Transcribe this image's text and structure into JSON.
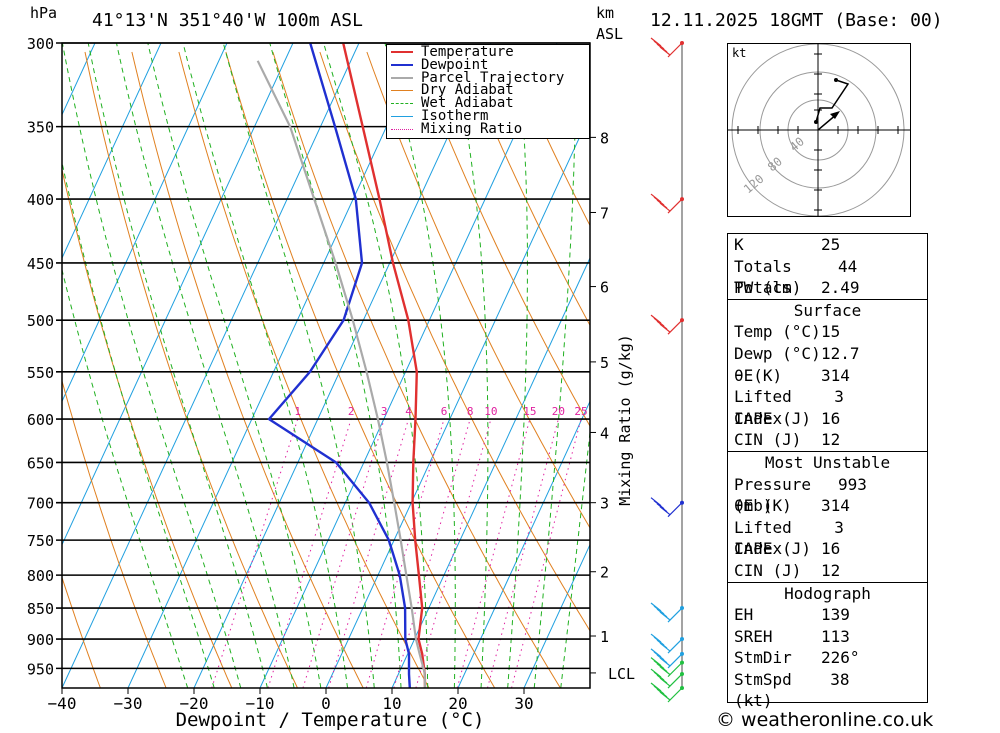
{
  "header": {
    "location": "41°13'N  351°40'W  100m  ASL",
    "datetime": "12.11.2025  18GMT  (Base: 00)",
    "unit_hpa": "hPa",
    "unit_km": "km",
    "unit_asl": "ASL"
  },
  "chart_data": {
    "type": "skew-t",
    "title": "41°13'N 351°40'W 100m ASL",
    "xlabel": "Dewpoint / Temperature (°C)",
    "ylabel": "hPa",
    "right_axis_label": "Mixing Ratio (g/kg)",
    "x_ticks": [
      "−40",
      "−30",
      "−20",
      "−10",
      "0",
      "10",
      "20",
      "30"
    ],
    "x_tick_values": [
      -40,
      -30,
      -20,
      -10,
      0,
      10,
      20,
      30
    ],
    "xlim": [
      -40,
      40
    ],
    "pressure_levels": [
      300,
      350,
      400,
      450,
      500,
      550,
      600,
      650,
      700,
      750,
      800,
      850,
      900,
      950
    ],
    "pressure_range": [
      985,
      300
    ],
    "km_ticks": [
      {
        "label": "8",
        "p": 357
      },
      {
        "label": "7",
        "p": 410
      },
      {
        "label": "6",
        "p": 470
      },
      {
        "label": "5",
        "p": 540
      },
      {
        "label": "4",
        "p": 615
      },
      {
        "label": "3",
        "p": 700
      },
      {
        "label": "2",
        "p": 795
      },
      {
        "label": "1",
        "p": 895
      }
    ],
    "lcl_label": "LCL",
    "lcl_pressure": 958,
    "mixing_ratio_labels": [
      "1",
      "2",
      "3",
      "4",
      "6",
      "8",
      "10",
      "15",
      "20",
      "25"
    ],
    "mixing_ratio_values": [
      1,
      2,
      3,
      4,
      6,
      8,
      10,
      15,
      20,
      25
    ],
    "legend": [
      "Temperature",
      "Dewpoint",
      "Parcel Trajectory",
      "Dry Adiabat",
      "Wet Adiabat",
      "Isotherm",
      "Mixing Ratio"
    ],
    "colors": {
      "temperature": "#e03030",
      "dewpoint": "#2030d0",
      "parcel": "#aaaaaa",
      "dry_adiabat": "#e08020",
      "wet_adiabat": "#20b020",
      "isotherm": "#20a0e0",
      "mixing_ratio": "#e020a0"
    },
    "series": [
      {
        "name": "Temperature",
        "points": [
          [
            15,
            985
          ],
          [
            14,
            960
          ],
          [
            12.2,
            925
          ],
          [
            10.6,
            900
          ],
          [
            9,
            850
          ],
          [
            6.2,
            800
          ],
          [
            3.2,
            750
          ],
          [
            0.2,
            700
          ],
          [
            -2.5,
            650
          ],
          [
            -5.2,
            600
          ],
          [
            -8.3,
            550
          ],
          [
            -13.2,
            500
          ],
          [
            -19.5,
            450
          ],
          [
            -26,
            400
          ],
          [
            -33.6,
            350
          ],
          [
            -42.4,
            300
          ]
        ]
      },
      {
        "name": "Dewpoint",
        "points": [
          [
            12.7,
            985
          ],
          [
            11.6,
            960
          ],
          [
            10.2,
            925
          ],
          [
            8.6,
            900
          ],
          [
            6.4,
            850
          ],
          [
            3.3,
            800
          ],
          [
            -0.8,
            750
          ],
          [
            -6.4,
            700
          ],
          [
            -14.2,
            650
          ],
          [
            -27.4,
            600
          ],
          [
            -24.5,
            550
          ],
          [
            -23,
            500
          ],
          [
            -24.2,
            450
          ],
          [
            -29.6,
            400
          ],
          [
            -37.8,
            350
          ],
          [
            -47.4,
            300
          ]
        ]
      },
      {
        "name": "Parcel Trajectory",
        "points": [
          [
            15,
            985
          ],
          [
            13.9,
            958
          ],
          [
            11.8,
            925
          ],
          [
            10.2,
            900
          ],
          [
            7.4,
            850
          ],
          [
            4.3,
            800
          ],
          [
            1,
            750
          ],
          [
            -2.6,
            700
          ],
          [
            -6.5,
            650
          ],
          [
            -10.9,
            600
          ],
          [
            -15.9,
            550
          ],
          [
            -21.6,
            500
          ],
          [
            -28.2,
            450
          ],
          [
            -35.9,
            400
          ],
          [
            -44.6,
            350
          ],
          [
            -54.1,
            310
          ]
        ]
      }
    ],
    "wind_barbs": [
      {
        "p": 985
      },
      {
        "p": 960
      },
      {
        "p": 940
      },
      {
        "p": 925
      },
      {
        "p": 900
      },
      {
        "p": 850
      },
      {
        "p": 700
      },
      {
        "p": 500
      },
      {
        "p": 400
      },
      {
        "p": 300
      }
    ]
  },
  "hodograph": {
    "unit": "kt",
    "ring_labels": [
      "40",
      "80",
      "120"
    ]
  },
  "indices": [
    {
      "label": "K",
      "value": "25"
    },
    {
      "label": "Totals Totals",
      "value": "44"
    },
    {
      "label": "PW (cm)",
      "value": "2.49"
    }
  ],
  "surface": {
    "title": "Surface",
    "rows": [
      {
        "label": "Temp (°C)",
        "value": "15"
      },
      {
        "label": "Dewp (°C)",
        "value": "12.7"
      },
      {
        "label": "θE(K)",
        "value": "314"
      },
      {
        "label": "Lifted Index",
        "value": "3"
      },
      {
        "label": "CAPE (J)",
        "value": "16"
      },
      {
        "label": "CIN (J)",
        "value": "12"
      }
    ]
  },
  "most_unstable": {
    "title": "Most Unstable",
    "rows": [
      {
        "label": "Pressure (mb)",
        "value": "993"
      },
      {
        "label": "θE (K)",
        "value": "314"
      },
      {
        "label": "Lifted Index",
        "value": "3"
      },
      {
        "label": "CAPE (J)",
        "value": "16"
      },
      {
        "label": "CIN (J)",
        "value": "12"
      }
    ]
  },
  "hodograph_stats": {
    "title": "Hodograph",
    "rows": [
      {
        "label": "EH",
        "value": "139"
      },
      {
        "label": "SREH",
        "value": "113"
      },
      {
        "label": "StmDir",
        "value": "226°"
      },
      {
        "label": "StmSpd (kt)",
        "value": "38"
      }
    ]
  },
  "footer": {
    "copyright": "© weatheronline.co.uk"
  }
}
